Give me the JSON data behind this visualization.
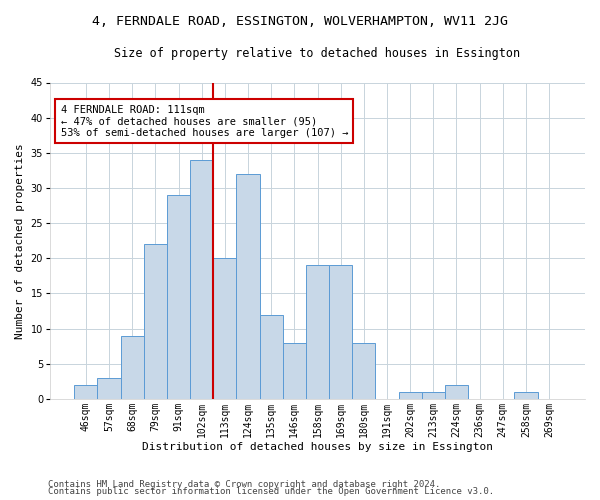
{
  "title": "4, FERNDALE ROAD, ESSINGTON, WOLVERHAMPTON, WV11 2JG",
  "subtitle": "Size of property relative to detached houses in Essington",
  "xlabel": "Distribution of detached houses by size in Essington",
  "ylabel": "Number of detached properties",
  "footer_line1": "Contains HM Land Registry data © Crown copyright and database right 2024.",
  "footer_line2": "Contains public sector information licensed under the Open Government Licence v3.0.",
  "bin_labels": [
    "46sqm",
    "57sqm",
    "68sqm",
    "79sqm",
    "91sqm",
    "102sqm",
    "113sqm",
    "124sqm",
    "135sqm",
    "146sqm",
    "158sqm",
    "169sqm",
    "180sqm",
    "191sqm",
    "202sqm",
    "213sqm",
    "224sqm",
    "236sqm",
    "247sqm",
    "258sqm",
    "269sqm"
  ],
  "bar_values": [
    2,
    3,
    9,
    22,
    29,
    34,
    20,
    32,
    12,
    8,
    19,
    19,
    8,
    0,
    1,
    1,
    2,
    0,
    0,
    1,
    0
  ],
  "bar_color": "#c8d8e8",
  "bar_edge_color": "#5b9bd5",
  "vline_pos": 5.5,
  "vline_color": "#cc0000",
  "annotation_text": "4 FERNDALE ROAD: 111sqm\n← 47% of detached houses are smaller (95)\n53% of semi-detached houses are larger (107) →",
  "annotation_box_color": "#ffffff",
  "annotation_box_edge": "#cc0000",
  "ylim": [
    0,
    45
  ],
  "yticks": [
    0,
    5,
    10,
    15,
    20,
    25,
    30,
    35,
    40,
    45
  ],
  "bg_color": "#ffffff",
  "grid_color": "#c8d4dc",
  "title_fontsize": 9.5,
  "subtitle_fontsize": 8.5,
  "axis_label_fontsize": 8,
  "tick_fontsize": 7,
  "footer_fontsize": 6.5,
  "annotation_fontsize": 7.5
}
